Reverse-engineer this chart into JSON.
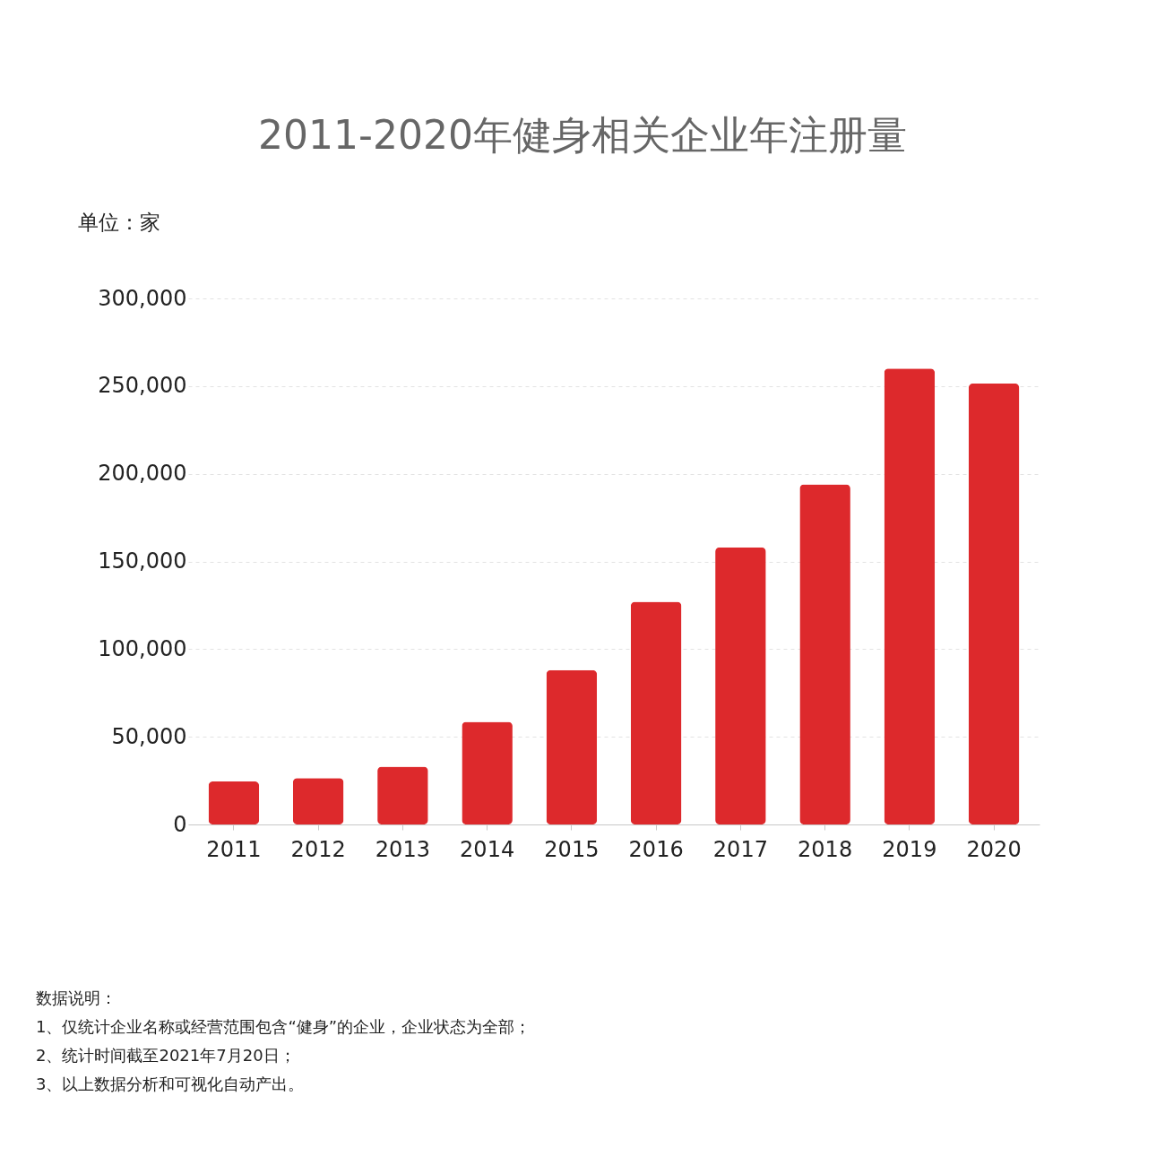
{
  "chart_data": {
    "type": "bar",
    "title": "2011-2020年健身相关企业年注册量",
    "ylabel": "单位：家",
    "categories": [
      "2011",
      "2012",
      "2013",
      "2014",
      "2015",
      "2016",
      "2017",
      "2018",
      "2019",
      "2020"
    ],
    "values": [
      24500,
      26500,
      33000,
      58500,
      88000,
      127000,
      158000,
      194000,
      260000,
      251500
    ],
    "color": "#dd292c",
    "ylim": [
      0,
      300000
    ],
    "yticks": [
      0,
      {
        "value": 50000,
        "label": "50,000"
      },
      {
        "value": 100000,
        "label": "100,000"
      },
      {
        "value": 150000,
        "label": "150,000"
      },
      {
        "value": 200000,
        "label": "200,000"
      },
      {
        "value": 250000,
        "label": "250,000"
      },
      {
        "value": 300000,
        "label": "300,000"
      }
    ],
    "grid": "y",
    "annotations": [
      "数据说明：",
      "1、仅统计企业名称或经营范围包含“健身”的企业，企业状态为全部；",
      "2、统计时间截至2021年7月20日；",
      "3、以上数据分析和可视化自动产出。"
    ]
  }
}
